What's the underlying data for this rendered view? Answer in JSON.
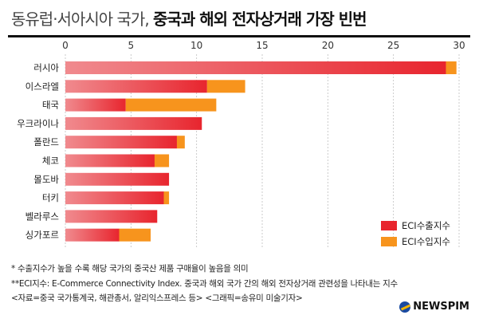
{
  "header": {
    "title_light": "동유럽·서아시아 국가,",
    "title_bold": "중국과 해외 전자상거래 가장 빈번"
  },
  "chart_data": {
    "type": "bar",
    "orientation": "horizontal",
    "stacked": true,
    "categories": [
      "러시아",
      "이스라엘",
      "태국",
      "우크라이나",
      "폴란드",
      "체코",
      "몰도바",
      "터키",
      "벨라루스",
      "싱가포르"
    ],
    "series": [
      {
        "name": "ECI수출지수",
        "color": "#e8252e",
        "values": [
          29.0,
          10.8,
          4.6,
          10.4,
          8.5,
          6.8,
          7.9,
          7.5,
          7.0,
          4.1
        ]
      },
      {
        "name": "ECI수입지수",
        "color": "#f7941d",
        "values": [
          0.8,
          2.9,
          6.9,
          0.0,
          0.6,
          1.1,
          0.0,
          0.4,
          0.0,
          2.4
        ]
      }
    ],
    "xlim": [
      0,
      30
    ],
    "xticks": [
      0,
      5,
      10,
      15,
      20,
      25,
      30
    ],
    "grid": true,
    "legend_position": "bottom-right"
  },
  "legend": {
    "export_label": "ECI수출지수",
    "import_label": "ECI수입지수"
  },
  "notes": [
    "* 수출지수가 높을 수록 해당 국가의 중국산 제품 구매율이 높음을 의미",
    "**ECI지수: E-Commerce Connectivity Index. 중국과 해외 국가 간의 해외 전자상거래 관련성을 나타내는 지수",
    "<자료=중국 국가통계국, 해관총서, 알리익스프레스 등> <그래픽=송유미 미술기자>"
  ],
  "logo": {
    "text": "NEWSPIM",
    "icon": "newspim-logo-icon"
  }
}
